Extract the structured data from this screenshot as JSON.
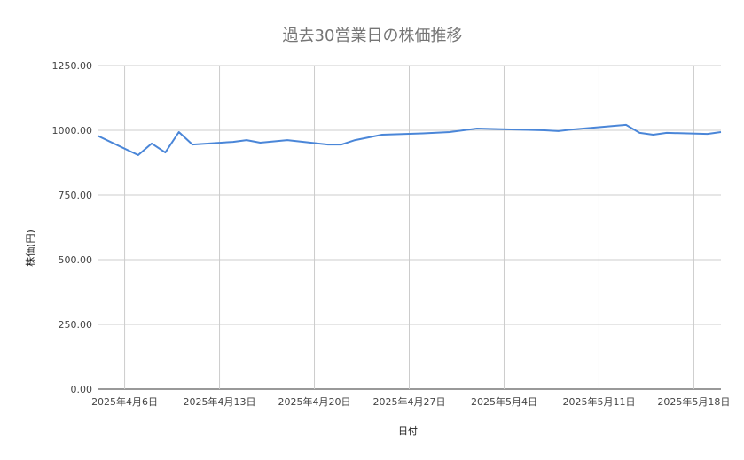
{
  "chart_data": {
    "type": "line",
    "title": "過去30営業日の株価推移",
    "xlabel": "日付",
    "ylabel": "株価(円)",
    "ylim": [
      0,
      1250
    ],
    "xlim": [
      "2025-04-04",
      "2025-05-20"
    ],
    "yticks": [
      0,
      250,
      500,
      750,
      1000,
      1250
    ],
    "ytick_labels": [
      "0.00",
      "250.00",
      "500.00",
      "750.00",
      "1000.00",
      "1250.00"
    ],
    "xticks": [
      "2025-04-06",
      "2025-04-13",
      "2025-04-20",
      "2025-04-27",
      "2025-05-04",
      "2025-05-11",
      "2025-05-18"
    ],
    "xtick_labels": [
      "2025年4月6日",
      "2025年4月13日",
      "2025年4月20日",
      "2025年4月27日",
      "2025年5月4日",
      "2025年5月11日",
      "2025年5月18日"
    ],
    "grid": true,
    "line_color": "#4a86d8",
    "series": [
      {
        "x": [
          "2025-04-04",
          "2025-04-07",
          "2025-04-08",
          "2025-04-09",
          "2025-04-10",
          "2025-04-11",
          "2025-04-14",
          "2025-04-15",
          "2025-04-16",
          "2025-04-18",
          "2025-04-21",
          "2025-04-22",
          "2025-04-23",
          "2025-04-25",
          "2025-04-28",
          "2025-04-30",
          "2025-05-02",
          "2025-05-07",
          "2025-05-08",
          "2025-05-09",
          "2025-05-13",
          "2025-05-14",
          "2025-05-15",
          "2025-05-16",
          "2025-05-19",
          "2025-05-20"
        ],
        "values": [
          979,
          904,
          949,
          914,
          993,
          945,
          955,
          962,
          952,
          962,
          945,
          945,
          962,
          983,
          988,
          993,
          1007,
          1000,
          997,
          1003,
          1021,
          990,
          983,
          990,
          986,
          993
        ]
      }
    ]
  }
}
